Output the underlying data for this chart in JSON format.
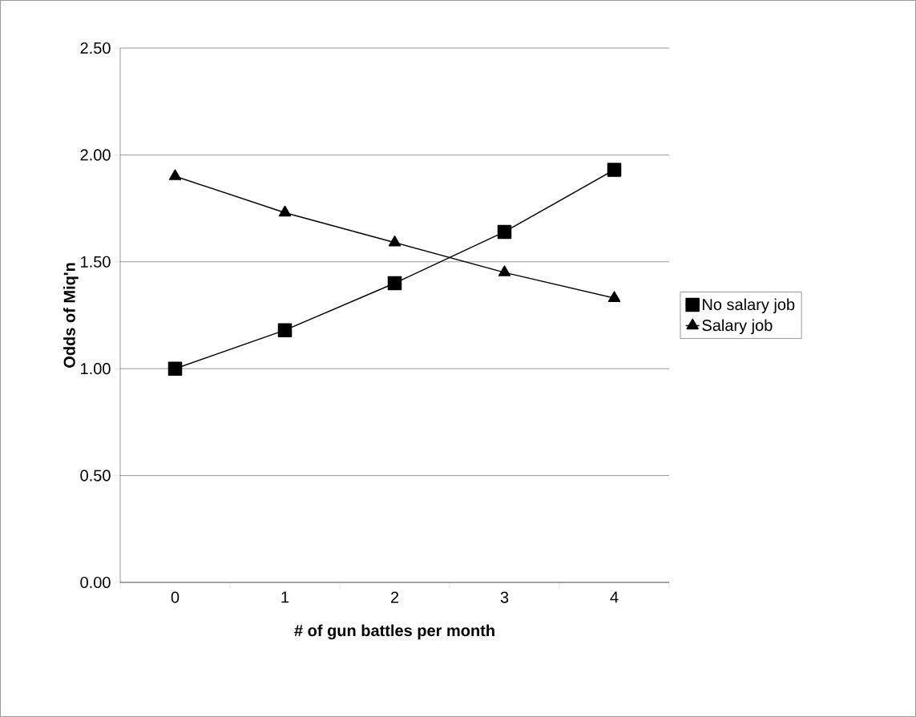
{
  "chart_data": {
    "type": "line",
    "xlabel": "# of gun battles per month",
    "ylabel": "Odds of Miq'n",
    "categories": [
      "0",
      "1",
      "2",
      "3",
      "4"
    ],
    "series": [
      {
        "name": "No salary job",
        "color": "#000000",
        "marker": "square",
        "values": [
          1.0,
          1.18,
          1.4,
          1.64,
          1.93
        ]
      },
      {
        "name": "Salary job",
        "color": "#000000",
        "marker": "triangle",
        "values": [
          1.9,
          1.73,
          1.59,
          1.45,
          1.33
        ]
      }
    ],
    "ylim": [
      0,
      2.5
    ],
    "yticks": [
      {
        "value": 0,
        "label": "0.00"
      },
      {
        "value": 0.5,
        "label": "0.50"
      },
      {
        "value": 1,
        "label": "1.00"
      },
      {
        "value": 1.5,
        "label": "1.50"
      },
      {
        "value": 2,
        "label": "2.00"
      },
      {
        "value": 2.5,
        "label": "2.50"
      }
    ],
    "grid": "y",
    "legend": "right",
    "line_style": "solid"
  }
}
